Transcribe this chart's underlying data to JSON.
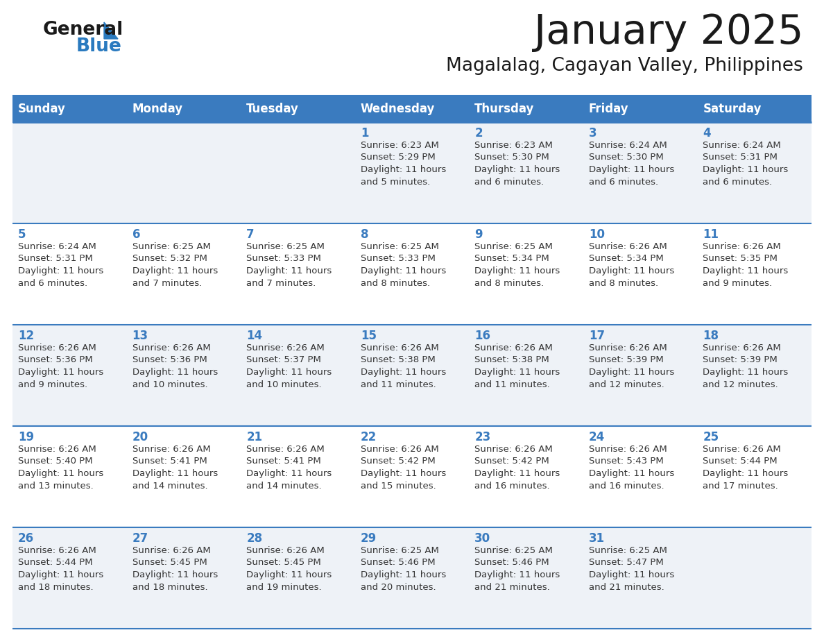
{
  "title": "January 2025",
  "subtitle": "Magalalag, Cagayan Valley, Philippines",
  "header_bg_color": "#3a7bbf",
  "header_text_color": "#ffffff",
  "row_bg_even": "#eef2f7",
  "row_bg_odd": "#ffffff",
  "day_number_color": "#3a7bbf",
  "cell_text_color": "#333333",
  "border_color": "#3a7bbf",
  "days_of_week": [
    "Sunday",
    "Monday",
    "Tuesday",
    "Wednesday",
    "Thursday",
    "Friday",
    "Saturday"
  ],
  "logo_general_color": "#1a1a1a",
  "logo_blue_color": "#2a7abf",
  "calendar_data": [
    [
      {
        "day": "",
        "sunrise": "",
        "sunset": "",
        "daylight": ""
      },
      {
        "day": "",
        "sunrise": "",
        "sunset": "",
        "daylight": ""
      },
      {
        "day": "",
        "sunrise": "",
        "sunset": "",
        "daylight": ""
      },
      {
        "day": "1",
        "sunrise": "Sunrise: 6:23 AM",
        "sunset": "Sunset: 5:29 PM",
        "daylight": "Daylight: 11 hours\nand 5 minutes."
      },
      {
        "day": "2",
        "sunrise": "Sunrise: 6:23 AM",
        "sunset": "Sunset: 5:30 PM",
        "daylight": "Daylight: 11 hours\nand 6 minutes."
      },
      {
        "day": "3",
        "sunrise": "Sunrise: 6:24 AM",
        "sunset": "Sunset: 5:30 PM",
        "daylight": "Daylight: 11 hours\nand 6 minutes."
      },
      {
        "day": "4",
        "sunrise": "Sunrise: 6:24 AM",
        "sunset": "Sunset: 5:31 PM",
        "daylight": "Daylight: 11 hours\nand 6 minutes."
      }
    ],
    [
      {
        "day": "5",
        "sunrise": "Sunrise: 6:24 AM",
        "sunset": "Sunset: 5:31 PM",
        "daylight": "Daylight: 11 hours\nand 6 minutes."
      },
      {
        "day": "6",
        "sunrise": "Sunrise: 6:25 AM",
        "sunset": "Sunset: 5:32 PM",
        "daylight": "Daylight: 11 hours\nand 7 minutes."
      },
      {
        "day": "7",
        "sunrise": "Sunrise: 6:25 AM",
        "sunset": "Sunset: 5:33 PM",
        "daylight": "Daylight: 11 hours\nand 7 minutes."
      },
      {
        "day": "8",
        "sunrise": "Sunrise: 6:25 AM",
        "sunset": "Sunset: 5:33 PM",
        "daylight": "Daylight: 11 hours\nand 8 minutes."
      },
      {
        "day": "9",
        "sunrise": "Sunrise: 6:25 AM",
        "sunset": "Sunset: 5:34 PM",
        "daylight": "Daylight: 11 hours\nand 8 minutes."
      },
      {
        "day": "10",
        "sunrise": "Sunrise: 6:26 AM",
        "sunset": "Sunset: 5:34 PM",
        "daylight": "Daylight: 11 hours\nand 8 minutes."
      },
      {
        "day": "11",
        "sunrise": "Sunrise: 6:26 AM",
        "sunset": "Sunset: 5:35 PM",
        "daylight": "Daylight: 11 hours\nand 9 minutes."
      }
    ],
    [
      {
        "day": "12",
        "sunrise": "Sunrise: 6:26 AM",
        "sunset": "Sunset: 5:36 PM",
        "daylight": "Daylight: 11 hours\nand 9 minutes."
      },
      {
        "day": "13",
        "sunrise": "Sunrise: 6:26 AM",
        "sunset": "Sunset: 5:36 PM",
        "daylight": "Daylight: 11 hours\nand 10 minutes."
      },
      {
        "day": "14",
        "sunrise": "Sunrise: 6:26 AM",
        "sunset": "Sunset: 5:37 PM",
        "daylight": "Daylight: 11 hours\nand 10 minutes."
      },
      {
        "day": "15",
        "sunrise": "Sunrise: 6:26 AM",
        "sunset": "Sunset: 5:38 PM",
        "daylight": "Daylight: 11 hours\nand 11 minutes."
      },
      {
        "day": "16",
        "sunrise": "Sunrise: 6:26 AM",
        "sunset": "Sunset: 5:38 PM",
        "daylight": "Daylight: 11 hours\nand 11 minutes."
      },
      {
        "day": "17",
        "sunrise": "Sunrise: 6:26 AM",
        "sunset": "Sunset: 5:39 PM",
        "daylight": "Daylight: 11 hours\nand 12 minutes."
      },
      {
        "day": "18",
        "sunrise": "Sunrise: 6:26 AM",
        "sunset": "Sunset: 5:39 PM",
        "daylight": "Daylight: 11 hours\nand 12 minutes."
      }
    ],
    [
      {
        "day": "19",
        "sunrise": "Sunrise: 6:26 AM",
        "sunset": "Sunset: 5:40 PM",
        "daylight": "Daylight: 11 hours\nand 13 minutes."
      },
      {
        "day": "20",
        "sunrise": "Sunrise: 6:26 AM",
        "sunset": "Sunset: 5:41 PM",
        "daylight": "Daylight: 11 hours\nand 14 minutes."
      },
      {
        "day": "21",
        "sunrise": "Sunrise: 6:26 AM",
        "sunset": "Sunset: 5:41 PM",
        "daylight": "Daylight: 11 hours\nand 14 minutes."
      },
      {
        "day": "22",
        "sunrise": "Sunrise: 6:26 AM",
        "sunset": "Sunset: 5:42 PM",
        "daylight": "Daylight: 11 hours\nand 15 minutes."
      },
      {
        "day": "23",
        "sunrise": "Sunrise: 6:26 AM",
        "sunset": "Sunset: 5:42 PM",
        "daylight": "Daylight: 11 hours\nand 16 minutes."
      },
      {
        "day": "24",
        "sunrise": "Sunrise: 6:26 AM",
        "sunset": "Sunset: 5:43 PM",
        "daylight": "Daylight: 11 hours\nand 16 minutes."
      },
      {
        "day": "25",
        "sunrise": "Sunrise: 6:26 AM",
        "sunset": "Sunset: 5:44 PM",
        "daylight": "Daylight: 11 hours\nand 17 minutes."
      }
    ],
    [
      {
        "day": "26",
        "sunrise": "Sunrise: 6:26 AM",
        "sunset": "Sunset: 5:44 PM",
        "daylight": "Daylight: 11 hours\nand 18 minutes."
      },
      {
        "day": "27",
        "sunrise": "Sunrise: 6:26 AM",
        "sunset": "Sunset: 5:45 PM",
        "daylight": "Daylight: 11 hours\nand 18 minutes."
      },
      {
        "day": "28",
        "sunrise": "Sunrise: 6:26 AM",
        "sunset": "Sunset: 5:45 PM",
        "daylight": "Daylight: 11 hours\nand 19 minutes."
      },
      {
        "day": "29",
        "sunrise": "Sunrise: 6:25 AM",
        "sunset": "Sunset: 5:46 PM",
        "daylight": "Daylight: 11 hours\nand 20 minutes."
      },
      {
        "day": "30",
        "sunrise": "Sunrise: 6:25 AM",
        "sunset": "Sunset: 5:46 PM",
        "daylight": "Daylight: 11 hours\nand 21 minutes."
      },
      {
        "day": "31",
        "sunrise": "Sunrise: 6:25 AM",
        "sunset": "Sunset: 5:47 PM",
        "daylight": "Daylight: 11 hours\nand 21 minutes."
      },
      {
        "day": "",
        "sunrise": "",
        "sunset": "",
        "daylight": ""
      }
    ]
  ]
}
